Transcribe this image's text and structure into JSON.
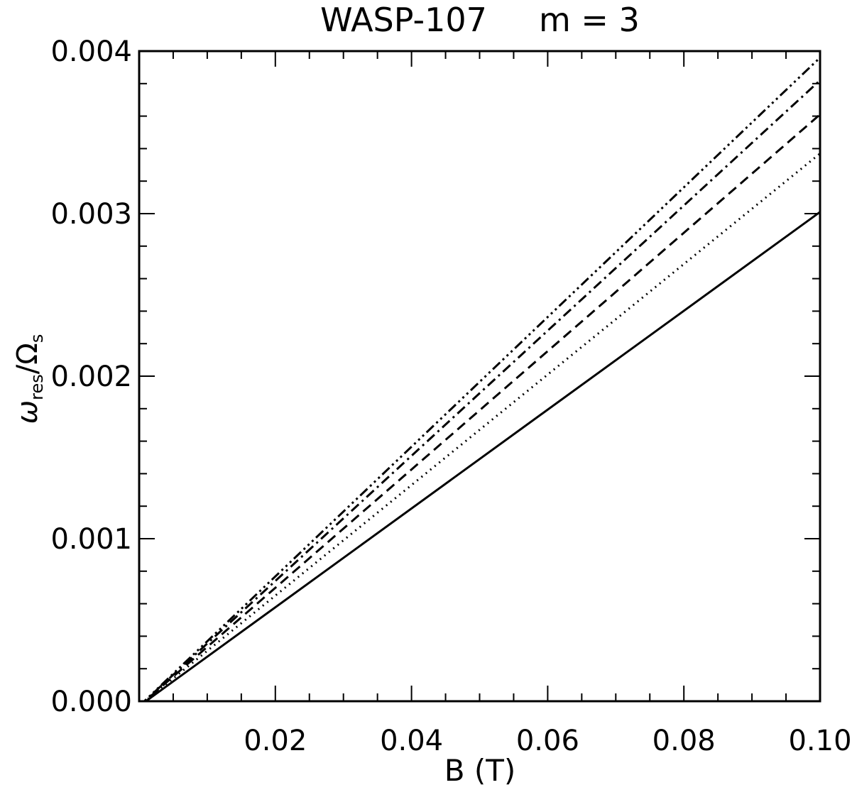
{
  "chart_data": {
    "type": "line",
    "title": "WASP-107     m = 3",
    "xlabel": "B (T)",
    "ylabel": {
      "omega": "ω",
      "omega_sub": "res",
      "slash": "/",
      "Omega": "Ω",
      "Omega_sub": "s"
    },
    "xlim": [
      0.0,
      0.1
    ],
    "ylim": [
      0.0,
      0.004
    ],
    "xticks": [
      0.02,
      0.04,
      0.06,
      0.08,
      0.1
    ],
    "xtick_labels": [
      "0.02",
      "0.04",
      "0.06",
      "0.08",
      "0.10"
    ],
    "yticks": [
      0.0,
      0.001,
      0.002,
      0.003,
      0.004
    ],
    "ytick_labels": [
      "0.000",
      "0.001",
      "0.002",
      "0.003",
      "0.004"
    ],
    "grid": false,
    "legend": "none",
    "series": [
      {
        "style": "solid",
        "x": [
          0.0,
          0.1
        ],
        "y": [
          -3e-05,
          0.00301
        ]
      },
      {
        "style": "dotted",
        "x": [
          0.0,
          0.1
        ],
        "y": [
          -3e-05,
          0.00337
        ]
      },
      {
        "style": "dashed",
        "x": [
          0.0,
          0.1
        ],
        "y": [
          -3e-05,
          0.00361
        ]
      },
      {
        "style": "dash-dot",
        "x": [
          0.0,
          0.1
        ],
        "y": [
          -3e-05,
          0.00382
        ]
      },
      {
        "style": "dash-dot-dot-dot",
        "x": [
          0.0,
          0.1
        ],
        "y": [
          -3e-05,
          0.00396
        ]
      }
    ]
  }
}
